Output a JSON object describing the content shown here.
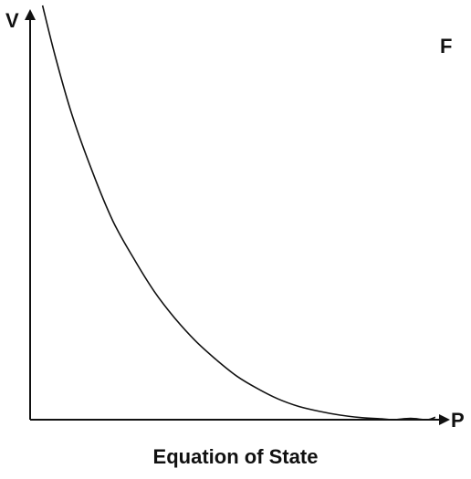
{
  "chart_data": {
    "type": "line",
    "panel_label": "F",
    "title": "Equation of State",
    "xlabel": "P",
    "ylabel": "V",
    "xlim": [
      0,
      1
    ],
    "ylim": [
      0,
      1
    ],
    "grid": false,
    "series": [
      {
        "color": "#111111",
        "x": [
          0.03,
          0.06,
          0.1,
          0.15,
          0.2,
          0.25,
          0.3,
          0.35,
          0.4,
          0.45,
          0.5,
          0.55,
          0.6,
          0.65,
          0.7,
          0.75,
          0.8,
          0.85,
          0.88,
          0.92,
          0.96,
          0.98
        ],
        "y": [
          1.0,
          0.88,
          0.74,
          0.6,
          0.48,
          0.39,
          0.31,
          0.245,
          0.19,
          0.145,
          0.105,
          0.075,
          0.05,
          0.032,
          0.02,
          0.011,
          0.005,
          0.002,
          0.0,
          0.003,
          0.0,
          0.006
        ]
      }
    ]
  }
}
